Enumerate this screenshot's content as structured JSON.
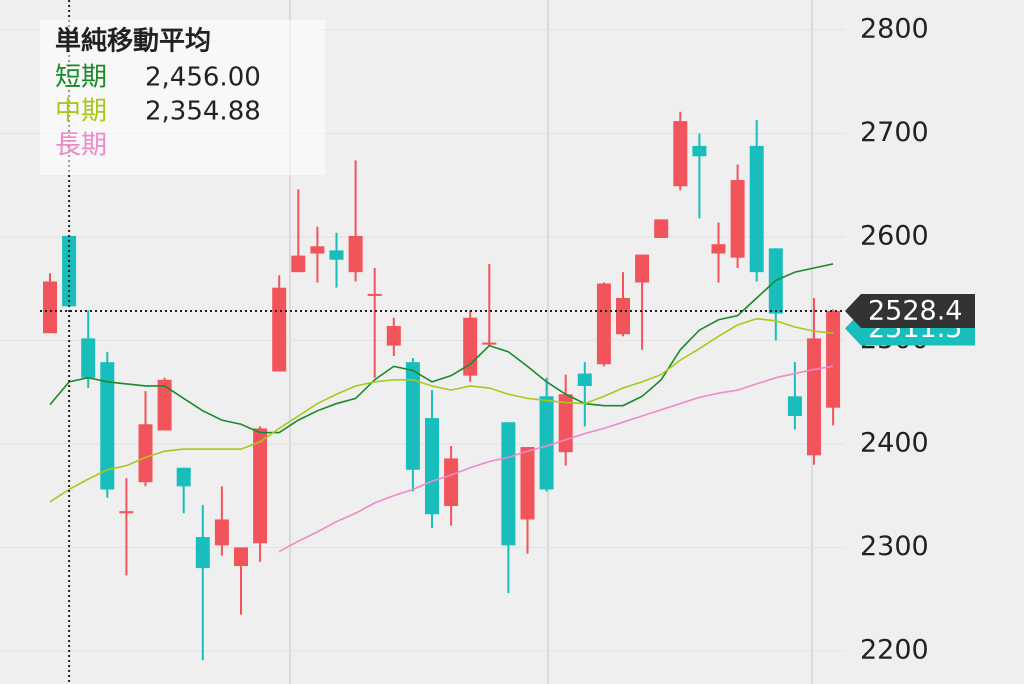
{
  "chart_data": {
    "type": "candlestick",
    "legend_title": "単純移動平均",
    "up_color": "#f2545b",
    "down_color": "#17bebb",
    "open": [
      2507,
      2601,
      2502,
      2479,
      2333,
      2363,
      2413,
      2377,
      2310,
      2302,
      2282,
      2304,
      2470,
      2566,
      2584,
      2587,
      2566,
      2543,
      2495,
      2479,
      2425,
      2340,
      2466,
      2496,
      2421,
      2327,
      2446,
      2392,
      2468,
      2477,
      2506,
      2556,
      2599,
      2649,
      2688,
      2584,
      2580,
      2688,
      2589,
      2446,
      2389,
      2435
    ],
    "high": [
      2565,
      2601,
      2529,
      2489,
      2367,
      2451,
      2464,
      2377,
      2341,
      2359,
      2300,
      2417,
      2563,
      2646,
      2610,
      2604,
      2674,
      2570,
      2522,
      2483,
      2452,
      2398,
      2529,
      2574,
      2421,
      2397,
      2464,
      2467,
      2479,
      2556,
      2566,
      2583,
      2617,
      2721,
      2700,
      2614,
      2670,
      2713,
      2589,
      2479,
      2541,
      2530
    ],
    "low": [
      2507,
      2533,
      2454,
      2348,
      2273,
      2359,
      2413,
      2333,
      2191,
      2292,
      2235,
      2286,
      2470,
      2566,
      2556,
      2551,
      2557,
      2464,
      2485,
      2354,
      2319,
      2321,
      2460,
      2495,
      2256,
      2294,
      2354,
      2379,
      2417,
      2475,
      2504,
      2491,
      2599,
      2645,
      2618,
      2556,
      2570,
      2557,
      2500,
      2414,
      2380,
      2418
    ],
    "close": [
      2557,
      2533,
      2464,
      2356,
      2335,
      2419,
      2462,
      2359,
      2280,
      2327,
      2300,
      2415,
      2551,
      2582,
      2591,
      2578,
      2601,
      2545,
      2514,
      2375,
      2332,
      2386,
      2522,
      2498,
      2302,
      2397,
      2356,
      2448,
      2456,
      2555,
      2541,
      2583,
      2617,
      2712,
      2678,
      2593,
      2655,
      2566,
      2526,
      2427,
      2502,
      2528.4
    ],
    "series": [
      {
        "name": "短期",
        "color": "#1a8a2a",
        "value_label": "2,456.00",
        "values": [
          2438,
          2460,
          2464,
          2460,
          2458,
          2456,
          2456,
          2444,
          2432,
          2423,
          2419,
          2411,
          2411,
          2423,
          2432,
          2439,
          2444,
          2462,
          2475,
          2471,
          2460,
          2466,
          2477,
          2495,
          2489,
          2475,
          2460,
          2448,
          2439,
          2437,
          2437,
          2446,
          2462,
          2491,
          2510,
          2520,
          2524,
          2541,
          2558,
          2566,
          2570,
          2574
        ]
      },
      {
        "name": "中期",
        "color": "#a8c81c",
        "value_label": "2,354.88",
        "values": [
          2344,
          2356,
          2366,
          2375,
          2379,
          2387,
          2393,
          2395,
          2395,
          2395,
          2395,
          2402,
          2415,
          2427,
          2439,
          2448,
          2456,
          2460,
          2462,
          2462,
          2456,
          2452,
          2456,
          2454,
          2448,
          2444,
          2442,
          2440,
          2439,
          2446,
          2454,
          2460,
          2467,
          2481,
          2492,
          2504,
          2515,
          2521,
          2519,
          2513,
          2509,
          2507
        ]
      },
      {
        "name": "長期",
        "color": "#ef8ac8",
        "values": [
          null,
          null,
          null,
          null,
          null,
          null,
          null,
          null,
          null,
          null,
          null,
          null,
          2296,
          2306,
          2315,
          2325,
          2333,
          2343,
          2350,
          2356,
          2364,
          2370,
          2377,
          2383,
          2387,
          2393,
          2398,
          2404,
          2410,
          2415,
          2421,
          2427,
          2433,
          2439,
          2445,
          2449,
          2452,
          2458,
          2464,
          2468,
          2472,
          2475
        ]
      }
    ],
    "price_tags": [
      {
        "value": 2511.5,
        "color": "#17bebb"
      },
      {
        "value": 2528.4,
        "color": "#333333"
      }
    ],
    "ylim": [
      2168,
      2829
    ],
    "yticks": [
      2200,
      2300,
      2400,
      2500,
      2600,
      2700,
      2800
    ],
    "grid": true
  }
}
